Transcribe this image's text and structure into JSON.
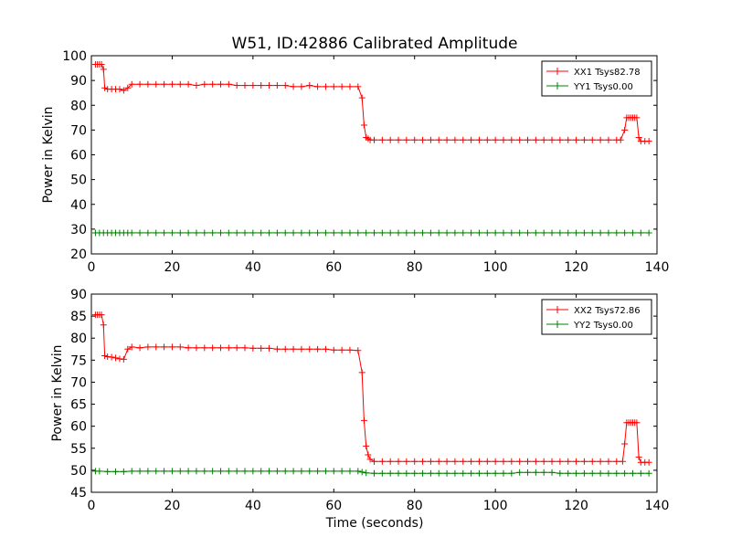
{
  "figure": {
    "title": "W51, ID:42886 Calibrated Amplitude",
    "xlabel": "Time (seconds)"
  },
  "chart_data": [
    {
      "type": "line",
      "ylabel": "Power in Kelvin",
      "xlim": [
        0,
        140
      ],
      "ylim": [
        20,
        100
      ],
      "xticks": [
        0,
        20,
        40,
        60,
        80,
        100,
        120,
        140
      ],
      "yticks": [
        20,
        30,
        40,
        50,
        60,
        70,
        80,
        90,
        100
      ],
      "legend_position": "top-right",
      "marker": "plus",
      "series": [
        {
          "name": "XX1 Tsys82.78",
          "color": "#ff0000",
          "x": [
            1,
            1.5,
            2,
            2.5,
            3,
            3.3,
            4,
            5,
            6,
            7,
            8,
            9,
            10,
            12,
            14,
            16,
            18,
            20,
            22,
            24,
            26,
            28,
            30,
            32,
            34,
            36,
            38,
            40,
            42,
            44,
            46,
            48,
            50,
            52,
            54,
            56,
            58,
            60,
            62,
            64,
            66,
            67,
            67.5,
            68,
            68.5,
            69,
            70,
            72,
            74,
            76,
            78,
            80,
            82,
            84,
            86,
            88,
            90,
            92,
            94,
            96,
            98,
            100,
            102,
            104,
            106,
            108,
            110,
            112,
            114,
            116,
            118,
            120,
            122,
            124,
            126,
            128,
            130,
            131,
            132,
            132.5,
            133,
            133.5,
            134,
            134.5,
            135,
            135.5,
            136,
            137,
            138
          ],
          "y": [
            96.5,
            96.5,
            96.5,
            96.5,
            94.5,
            87,
            86.5,
            86.5,
            86.5,
            86.5,
            86,
            87,
            88.5,
            88.5,
            88.5,
            88.5,
            88.5,
            88.5,
            88.5,
            88.5,
            88,
            88.5,
            88.5,
            88.5,
            88.5,
            88,
            88,
            88,
            88,
            88,
            88,
            88,
            87.5,
            87.5,
            88,
            87.5,
            87.5,
            87.5,
            87.5,
            87.5,
            87.5,
            83,
            72,
            67,
            66.5,
            66,
            66,
            66,
            66,
            66,
            66,
            66,
            66,
            66,
            66,
            66,
            66,
            66,
            66,
            66,
            66,
            66,
            66,
            66,
            66,
            66,
            66,
            66,
            66,
            66,
            66,
            66,
            66,
            66,
            66,
            66,
            66,
            66,
            70,
            75,
            75,
            75,
            75,
            75,
            75,
            67,
            65.5,
            65.5,
            65.5
          ]
        },
        {
          "name": "YY1 Tsys0.00",
          "color": "#008000",
          "x": [
            1,
            2,
            3,
            4,
            5,
            6,
            7,
            8,
            9,
            10,
            12,
            14,
            16,
            18,
            20,
            22,
            24,
            26,
            28,
            30,
            32,
            34,
            36,
            38,
            40,
            42,
            44,
            46,
            48,
            50,
            52,
            54,
            56,
            58,
            60,
            62,
            64,
            66,
            68,
            70,
            72,
            74,
            76,
            78,
            80,
            82,
            84,
            86,
            88,
            90,
            92,
            94,
            96,
            98,
            100,
            102,
            104,
            106,
            108,
            110,
            112,
            114,
            116,
            118,
            120,
            122,
            124,
            126,
            128,
            130,
            132,
            134,
            136,
            138
          ],
          "y": [
            28.5,
            28.5,
            28.5,
            28.5,
            28.5,
            28.5,
            28.5,
            28.5,
            28.5,
            28.5,
            28.5,
            28.5,
            28.5,
            28.5,
            28.5,
            28.5,
            28.5,
            28.5,
            28.5,
            28.5,
            28.5,
            28.5,
            28.5,
            28.5,
            28.5,
            28.5,
            28.5,
            28.5,
            28.5,
            28.5,
            28.5,
            28.5,
            28.5,
            28.5,
            28.5,
            28.5,
            28.5,
            28.5,
            28.5,
            28.5,
            28.5,
            28.5,
            28.5,
            28.5,
            28.5,
            28.5,
            28.5,
            28.5,
            28.5,
            28.5,
            28.5,
            28.5,
            28.5,
            28.5,
            28.5,
            28.5,
            28.5,
            28.5,
            28.5,
            28.5,
            28.5,
            28.5,
            28.5,
            28.5,
            28.5,
            28.5,
            28.5,
            28.5,
            28.5,
            28.5,
            28.5,
            28.5,
            28.5,
            28.5
          ]
        }
      ]
    },
    {
      "type": "line",
      "ylabel": "Power in Kelvin",
      "xlim": [
        0,
        140
      ],
      "ylim": [
        45,
        90
      ],
      "xticks": [
        0,
        20,
        40,
        60,
        80,
        100,
        120,
        140
      ],
      "yticks": [
        45,
        50,
        55,
        60,
        65,
        70,
        75,
        80,
        85,
        90
      ],
      "legend_position": "top-right",
      "marker": "plus",
      "series": [
        {
          "name": "XX2 Tsys72.86",
          "color": "#ff0000",
          "x": [
            1,
            1.5,
            2,
            2.5,
            3,
            3.3,
            4,
            5,
            6,
            7,
            8,
            9,
            10,
            12,
            14,
            16,
            18,
            20,
            22,
            24,
            26,
            28,
            30,
            32,
            34,
            36,
            38,
            40,
            42,
            44,
            46,
            48,
            50,
            52,
            54,
            56,
            58,
            60,
            62,
            64,
            66,
            67,
            67.5,
            68,
            68.5,
            69,
            70,
            72,
            74,
            76,
            78,
            80,
            82,
            84,
            86,
            88,
            90,
            92,
            94,
            96,
            98,
            100,
            102,
            104,
            106,
            108,
            110,
            112,
            114,
            116,
            118,
            120,
            122,
            124,
            126,
            128,
            130,
            131.5,
            132,
            132.5,
            133,
            133.5,
            134,
            134.5,
            135,
            135.5,
            136,
            137,
            138
          ],
          "y": [
            85.3,
            85.3,
            85.3,
            85.3,
            83,
            76,
            75.8,
            75.7,
            75.5,
            75.3,
            75.2,
            77.5,
            78,
            77.8,
            78,
            78,
            78,
            78,
            78,
            77.8,
            77.8,
            77.8,
            77.8,
            77.8,
            77.8,
            77.8,
            77.8,
            77.7,
            77.7,
            77.7,
            77.5,
            77.5,
            77.5,
            77.5,
            77.5,
            77.5,
            77.5,
            77.3,
            77.3,
            77.3,
            77.2,
            72.2,
            61.3,
            55.5,
            53.5,
            52.5,
            52,
            52,
            52,
            52,
            52,
            52,
            52,
            52,
            52,
            52,
            52,
            52,
            52,
            52,
            52,
            52,
            52,
            52,
            52,
            52,
            52,
            52,
            52,
            52,
            52,
            52,
            52,
            52,
            52,
            52,
            52,
            52,
            56,
            60.8,
            60.8,
            60.8,
            60.8,
            60.8,
            60.8,
            53,
            51.8,
            51.8,
            51.8
          ]
        },
        {
          "name": "YY2 Tsys0.00",
          "color": "#008000",
          "x": [
            1,
            2,
            4,
            6,
            8,
            10,
            12,
            14,
            16,
            18,
            20,
            22,
            24,
            26,
            28,
            30,
            32,
            34,
            36,
            38,
            40,
            42,
            44,
            46,
            48,
            50,
            52,
            54,
            56,
            58,
            60,
            62,
            64,
            66,
            67,
            68,
            70,
            72,
            74,
            76,
            78,
            80,
            82,
            84,
            86,
            88,
            90,
            92,
            94,
            96,
            98,
            100,
            102,
            104,
            106,
            108,
            110,
            112,
            114,
            116,
            118,
            120,
            122,
            124,
            126,
            128,
            130,
            132,
            134,
            136,
            138
          ],
          "y": [
            49.8,
            49.8,
            49.7,
            49.7,
            49.7,
            49.8,
            49.8,
            49.8,
            49.8,
            49.8,
            49.8,
            49.8,
            49.8,
            49.8,
            49.8,
            49.8,
            49.8,
            49.8,
            49.8,
            49.8,
            49.8,
            49.8,
            49.8,
            49.8,
            49.8,
            49.8,
            49.8,
            49.8,
            49.8,
            49.8,
            49.8,
            49.8,
            49.8,
            49.8,
            49.6,
            49.4,
            49.3,
            49.3,
            49.3,
            49.3,
            49.3,
            49.3,
            49.3,
            49.3,
            49.3,
            49.3,
            49.3,
            49.3,
            49.3,
            49.3,
            49.3,
            49.3,
            49.3,
            49.3,
            49.5,
            49.5,
            49.5,
            49.5,
            49.5,
            49.3,
            49.3,
            49.3,
            49.3,
            49.3,
            49.3,
            49.3,
            49.3,
            49.3,
            49.3,
            49.3,
            49.3
          ]
        }
      ]
    }
  ]
}
